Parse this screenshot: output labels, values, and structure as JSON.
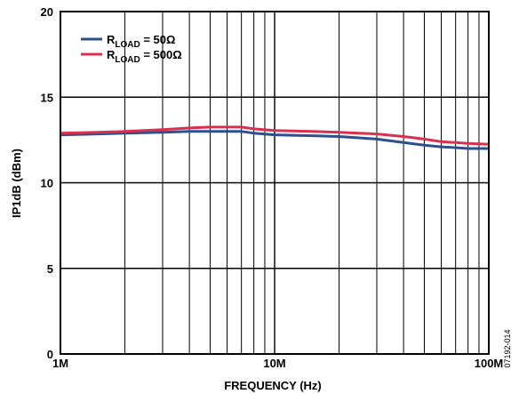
{
  "chart_data": {
    "type": "line",
    "xlabel": "FREQUENCY (Hz)",
    "ylabel": "IP1dB (dBm)",
    "xscale": "log",
    "xlim": [
      1000000,
      100000000
    ],
    "ylim": [
      0,
      20
    ],
    "grid": true,
    "legend_placement": "top-left",
    "x_ticks": [
      {
        "value": 1000000,
        "label": "1M"
      },
      {
        "value": 10000000,
        "label": "10M"
      },
      {
        "value": 100000000,
        "label": "100M"
      }
    ],
    "y_ticks": [
      {
        "value": 0,
        "label": "0"
      },
      {
        "value": 5,
        "label": "5"
      },
      {
        "value": 10,
        "label": "10"
      },
      {
        "value": 15,
        "label": "15"
      },
      {
        "value": 20,
        "label": "20"
      }
    ],
    "series": [
      {
        "name": "R_LOAD = 50Ω",
        "legend": {
          "main": "R",
          "sub": "LOAD",
          "suffix": " = 50Ω"
        },
        "color": "#2e4f8f",
        "x": [
          1000000,
          1500000,
          2000000,
          3000000,
          4000000,
          5000000,
          6000000,
          7000000,
          8000000,
          10000000,
          15000000,
          20000000,
          30000000,
          40000000,
          50000000,
          60000000,
          70000000,
          80000000,
          100000000
        ],
        "y": [
          12.8,
          12.85,
          12.9,
          12.95,
          13.0,
          13.0,
          13.0,
          13.0,
          12.9,
          12.8,
          12.75,
          12.7,
          12.55,
          12.35,
          12.2,
          12.1,
          12.05,
          12.0,
          12.0
        ]
      },
      {
        "name": "R_LOAD = 500Ω",
        "legend": {
          "main": "R",
          "sub": "LOAD",
          "suffix": " = 500Ω"
        },
        "color": "#d9304f",
        "x": [
          1000000,
          1500000,
          2000000,
          3000000,
          4000000,
          5000000,
          6000000,
          7000000,
          8000000,
          10000000,
          15000000,
          20000000,
          30000000,
          40000000,
          50000000,
          60000000,
          70000000,
          80000000,
          100000000
        ],
        "y": [
          12.9,
          12.95,
          13.0,
          13.1,
          13.2,
          13.25,
          13.25,
          13.25,
          13.15,
          13.05,
          13.0,
          12.95,
          12.85,
          12.7,
          12.55,
          12.4,
          12.35,
          12.3,
          12.25
        ]
      }
    ],
    "figure_id": "07192-014"
  }
}
